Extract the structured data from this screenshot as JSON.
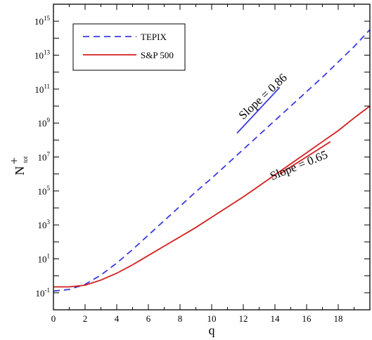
{
  "chart_data": {
    "type": "line",
    "xlabel": "q",
    "ylabel": "N",
    "ylabel_sup": "+",
    "ylabel_sub": "tot",
    "xlim": [
      0,
      20
    ],
    "ylim": [
      -2,
      16
    ],
    "y_scale": "log",
    "grid": false,
    "legend_position": "top-left",
    "x_ticks": [
      0,
      2,
      4,
      6,
      8,
      10,
      12,
      14,
      16,
      18
    ],
    "y_ticks": [
      -1,
      1,
      3,
      5,
      7,
      9,
      11,
      13,
      15
    ],
    "y_tick_base": "10",
    "series": [
      {
        "name": "TEPIX",
        "color": "#3a3ae0",
        "style": "dashed",
        "x": [
          0,
          1,
          2,
          3,
          4,
          5,
          6,
          7,
          8,
          9,
          10,
          11,
          12,
          13,
          14,
          15,
          16,
          17,
          18,
          19,
          20
        ],
        "log10_y": [
          -0.9,
          -0.8,
          -0.5,
          0.05,
          0.75,
          1.55,
          2.4,
          3.25,
          4.1,
          4.95,
          5.75,
          6.6,
          7.45,
          8.3,
          9.15,
          10.0,
          10.85,
          11.7,
          12.6,
          13.5,
          14.5
        ]
      },
      {
        "name": "S&P 500",
        "color": "#d41e1e",
        "style": "solid",
        "x": [
          0,
          1,
          2,
          3,
          4,
          5,
          6,
          7,
          8,
          9,
          10,
          11,
          12,
          13,
          14,
          15,
          16,
          17,
          18,
          19,
          20
        ],
        "log10_y": [
          -0.65,
          -0.65,
          -0.55,
          -0.25,
          0.15,
          0.65,
          1.2,
          1.75,
          2.3,
          2.85,
          3.45,
          4.05,
          4.65,
          5.3,
          5.95,
          6.6,
          7.25,
          7.9,
          8.55,
          9.3,
          10.0
        ]
      }
    ],
    "slope_lines": [
      {
        "color": "#3a3ae0",
        "x": [
          11.6,
          14.3
        ],
        "log10_y": [
          8.4,
          11.1
        ]
      },
      {
        "color": "#d41e1e",
        "x": [
          14.3,
          17.5
        ],
        "log10_y": [
          6.0,
          7.9
        ]
      }
    ],
    "annotations": [
      {
        "text": "Slope = 0.86",
        "x": 13.4,
        "log10_y": 10.4,
        "angle": -43
      },
      {
        "text": "Slope = 0.65",
        "x": 15.6,
        "log10_y": 6.3,
        "angle": -22
      }
    ]
  }
}
